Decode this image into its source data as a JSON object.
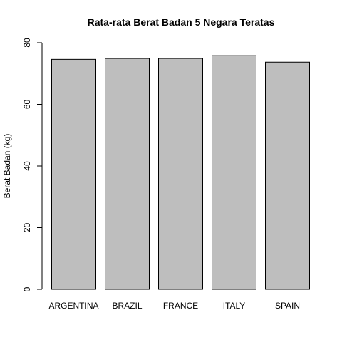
{
  "chart_data": {
    "type": "bar",
    "title": "Rata-rata Berat Badan 5 Negara Teratas",
    "xlabel": "",
    "ylabel": "Berat Badan (kg)",
    "categories": [
      "ARGENTINA",
      "BRAZIL",
      "FRANCE",
      "ITALY",
      "SPAIN"
    ],
    "values": [
      74.6,
      74.9,
      74.9,
      75.8,
      73.7
    ],
    "ylim": [
      0,
      80
    ],
    "yticks": [
      0,
      20,
      40,
      60,
      80
    ],
    "ytick_labels": [
      "0",
      "20",
      "40",
      "60",
      "80"
    ],
    "grid": false,
    "colors": {
      "bar_fill": "#bebebe",
      "bar_stroke": "#000000"
    }
  }
}
